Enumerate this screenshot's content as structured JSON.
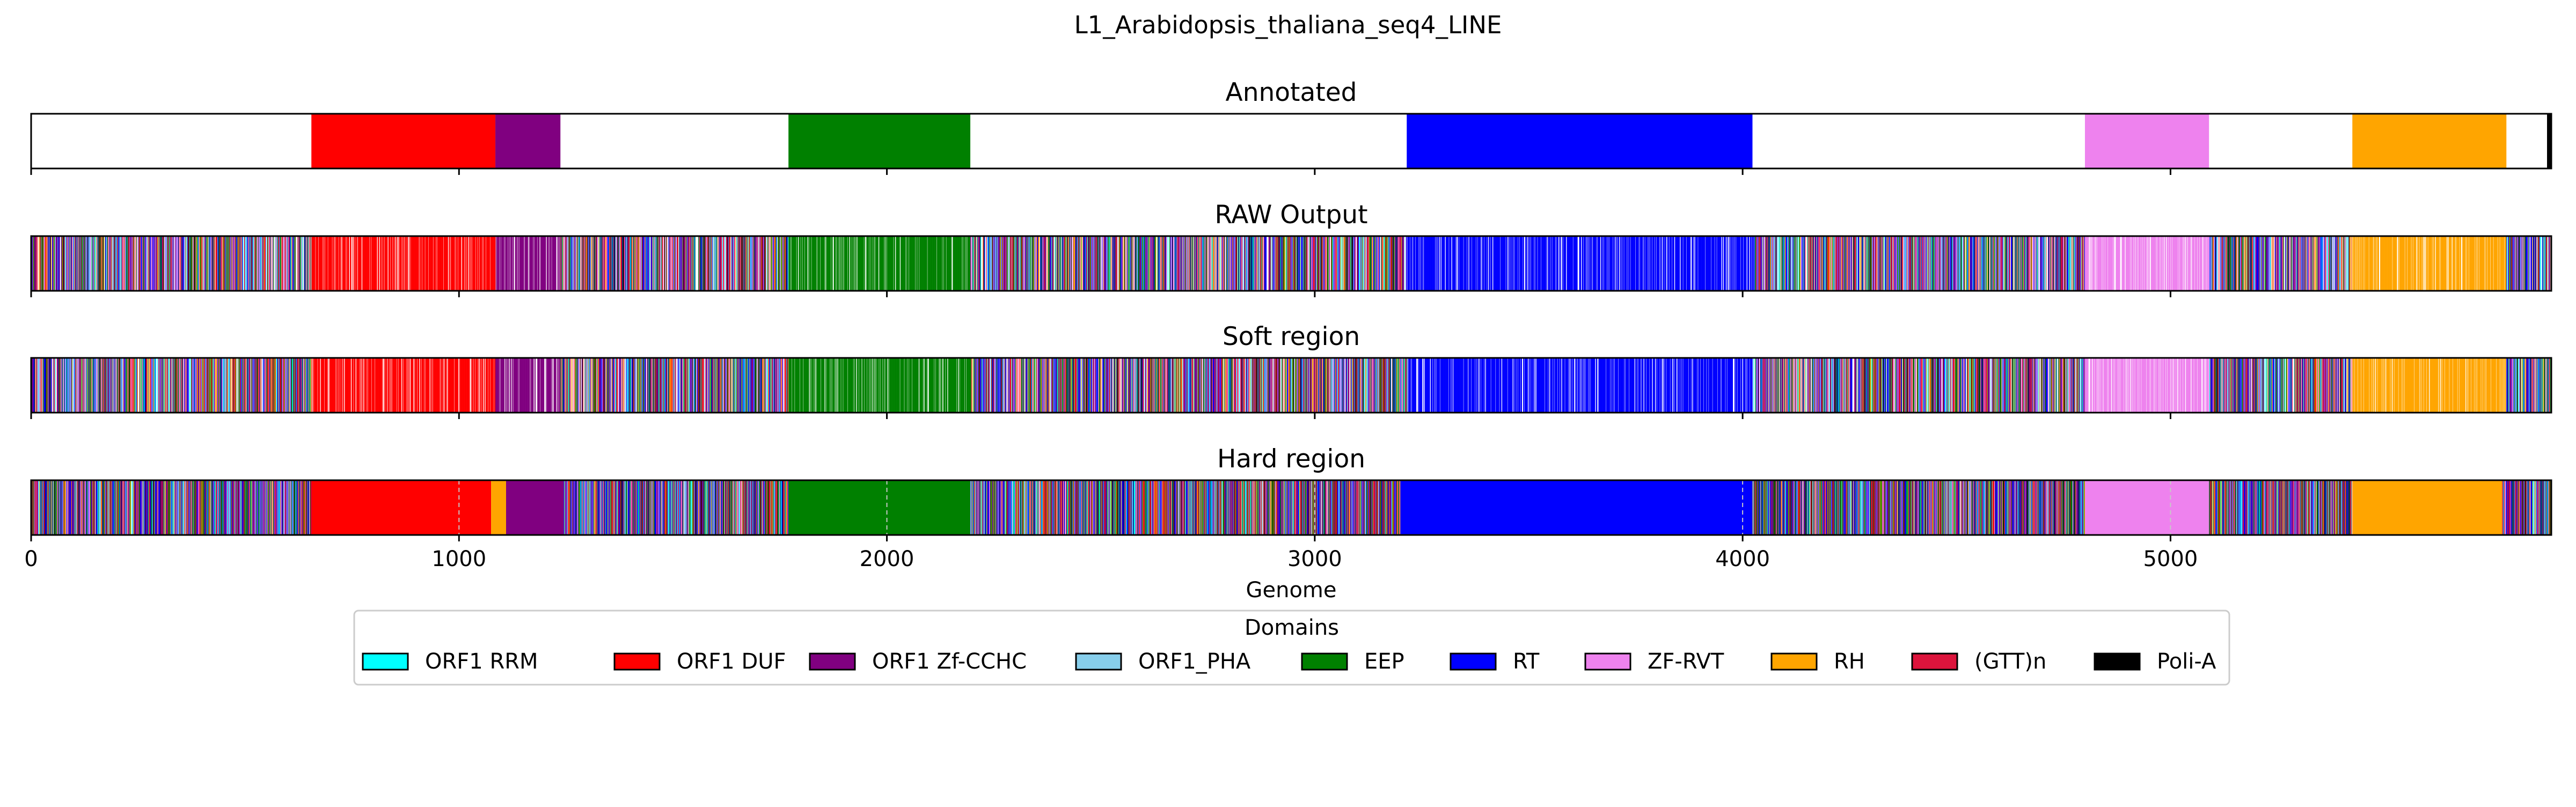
{
  "chart_data": {
    "type": "bar",
    "title": "L1_Arabidopsis_thaliana_seq4_LINE",
    "xlabel": "Genome",
    "xlim": [
      0,
      5890
    ],
    "xticks": [
      0,
      1000,
      2000,
      3000,
      4000,
      5000
    ],
    "legend_title": "Domains",
    "legend_position": "bottom-center",
    "domains": [
      {
        "name": "ORF1 RRM",
        "color": "#00ffff"
      },
      {
        "name": "ORF1 DUF",
        "color": "#ff0000"
      },
      {
        "name": "ORF1 Zf-CCHC",
        "color": "#800080"
      },
      {
        "name": "ORF1_PHA",
        "color": "#87ceeb"
      },
      {
        "name": "EEP",
        "color": "#008000"
      },
      {
        "name": "RT",
        "color": "#0000ff"
      },
      {
        "name": "ZF-RVT",
        "color": "#ee82ee"
      },
      {
        "name": "RH",
        "color": "#ffa500"
      },
      {
        "name": "(GTT)n",
        "color": "#dc143c"
      },
      {
        "name": "Poli-A",
        "color": "#000000"
      }
    ],
    "tracks": [
      {
        "title": "Annotated",
        "kind": "annotated",
        "segments": [
          {
            "domain": "ORF1 DUF",
            "start": 655,
            "end": 1085
          },
          {
            "domain": "ORF1 Zf-CCHC",
            "start": 1085,
            "end": 1237
          },
          {
            "domain": "EEP",
            "start": 1770,
            "end": 2195
          },
          {
            "domain": "RT",
            "start": 3215,
            "end": 4023
          },
          {
            "domain": "ZF-RVT",
            "start": 4800,
            "end": 5090
          },
          {
            "domain": "RH",
            "start": 5425,
            "end": 5785
          },
          {
            "domain": "Poli-A",
            "start": 5880,
            "end": 5890
          }
        ]
      },
      {
        "title": "RAW Output",
        "kind": "raw",
        "regions": [
          {
            "domain": "mixed",
            "start": 0,
            "end": 655
          },
          {
            "domain": "ORF1 DUF",
            "start": 655,
            "end": 1085
          },
          {
            "domain": "ORF1 Zf-CCHC",
            "start": 1085,
            "end": 1237
          },
          {
            "domain": "mixed",
            "start": 1237,
            "end": 1770
          },
          {
            "domain": "EEP",
            "start": 1770,
            "end": 2195
          },
          {
            "domain": "mixed",
            "start": 2195,
            "end": 3215
          },
          {
            "domain": "RT",
            "start": 3215,
            "end": 4023
          },
          {
            "domain": "mixed",
            "start": 4023,
            "end": 4800
          },
          {
            "domain": "ZF-RVT",
            "start": 4800,
            "end": 5090
          },
          {
            "domain": "mixed",
            "start": 5090,
            "end": 5425
          },
          {
            "domain": "RH",
            "start": 5425,
            "end": 5785
          },
          {
            "domain": "mixed",
            "start": 5785,
            "end": 5890
          }
        ]
      },
      {
        "title": "Soft region",
        "kind": "soft",
        "regions": [
          {
            "domain": "mixed",
            "start": 0,
            "end": 655
          },
          {
            "domain": "ORF1 DUF",
            "start": 655,
            "end": 1085
          },
          {
            "domain": "ORF1 Zf-CCHC",
            "start": 1085,
            "end": 1237
          },
          {
            "domain": "mixed",
            "start": 1237,
            "end": 1770
          },
          {
            "domain": "EEP",
            "start": 1770,
            "end": 2195
          },
          {
            "domain": "mixed",
            "start": 2195,
            "end": 3215
          },
          {
            "domain": "RT",
            "start": 3215,
            "end": 4023
          },
          {
            "domain": "mixed",
            "start": 4023,
            "end": 4800
          },
          {
            "domain": "ZF-RVT",
            "start": 4800,
            "end": 5090
          },
          {
            "domain": "mixed",
            "start": 5090,
            "end": 5425
          },
          {
            "domain": "RH",
            "start": 5425,
            "end": 5785
          },
          {
            "domain": "mixed",
            "start": 5785,
            "end": 5890
          }
        ]
      },
      {
        "title": "Hard region",
        "kind": "hard",
        "regions": [
          {
            "domain": "mixed",
            "start": 0,
            "end": 655
          },
          {
            "domain": "ORF1 DUF",
            "start": 655,
            "end": 1075
          },
          {
            "domain": "RH",
            "start": 1075,
            "end": 1110
          },
          {
            "domain": "ORF1 Zf-CCHC",
            "start": 1110,
            "end": 1245
          },
          {
            "domain": "mixed",
            "start": 1245,
            "end": 1770
          },
          {
            "domain": "EEP",
            "start": 1770,
            "end": 2195
          },
          {
            "domain": "mixed",
            "start": 2195,
            "end": 3200
          },
          {
            "domain": "RT",
            "start": 3200,
            "end": 4023
          },
          {
            "domain": "mixed",
            "start": 4023,
            "end": 4800
          },
          {
            "domain": "ZF-RVT",
            "start": 4800,
            "end": 5090
          },
          {
            "domain": "mixed",
            "start": 5090,
            "end": 5425
          },
          {
            "domain": "RH",
            "start": 5425,
            "end": 5775
          },
          {
            "domain": "mixed",
            "start": 5775,
            "end": 5890
          }
        ]
      }
    ]
  }
}
